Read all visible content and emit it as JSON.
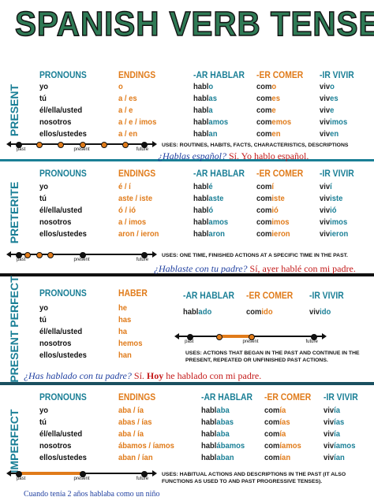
{
  "title": "SPANISH VERB TENSES",
  "sections": [
    {
      "label": "PRESENT",
      "columns": [
        {
          "header": "PRONOUNS",
          "rows": [
            [
              "yo"
            ],
            [
              "tú"
            ],
            [
              "él/ella/usted"
            ],
            [
              "nosotros"
            ],
            [
              "ellos/ustedes"
            ]
          ]
        },
        {
          "header": "ENDINGS",
          "rows": [
            [
              "o"
            ],
            [
              "a / es"
            ],
            [
              "a / e"
            ],
            [
              "a / e / imos"
            ],
            [
              "a / en"
            ]
          ]
        },
        {
          "header": "-AR HABLAR",
          "rows": [
            [
              "habl",
              "o"
            ],
            [
              "habl",
              "as"
            ],
            [
              "habl",
              "a"
            ],
            [
              "habl",
              "amos"
            ],
            [
              "habl",
              "an"
            ]
          ]
        },
        {
          "header": "-ER COMER",
          "rows": [
            [
              "com",
              "o"
            ],
            [
              "com",
              "es"
            ],
            [
              "com",
              "e"
            ],
            [
              "com",
              "emos"
            ],
            [
              "com",
              "en"
            ]
          ]
        },
        {
          "header": "-IR VIVIR",
          "rows": [
            [
              "viv",
              "o"
            ],
            [
              "viv",
              "es"
            ],
            [
              "viv",
              "e"
            ],
            [
              "viv",
              "imos"
            ],
            [
              "viv",
              "en"
            ]
          ]
        }
      ],
      "timeline": [
        "past",
        "present",
        "future"
      ],
      "uses": "USES: ROUTINES, HABITS, FACTS, CHARACTERISTICS, DESCRIPTIONS",
      "example": {
        "question": "¿Hablas español?",
        "answer": [
          "Sí. Yo hablo español."
        ]
      }
    },
    {
      "label": "PRETERITE",
      "columns": [
        {
          "header": "PRONOUNS",
          "rows": [
            [
              "yo"
            ],
            [
              "tú"
            ],
            [
              "él/ella/usted"
            ],
            [
              "nosotros"
            ],
            [
              "ellos/ustedes"
            ]
          ]
        },
        {
          "header": "ENDINGS",
          "rows": [
            [
              "é / í"
            ],
            [
              "aste / iste"
            ],
            [
              "ó / ió"
            ],
            [
              "a / imos"
            ],
            [
              "aron / ieron"
            ]
          ]
        },
        {
          "header": "-AR HABLAR",
          "rows": [
            [
              "habl",
              "é"
            ],
            [
              "habl",
              "aste"
            ],
            [
              "habl",
              "ó"
            ],
            [
              "habl",
              "amos"
            ],
            [
              "habl",
              "aron"
            ]
          ]
        },
        {
          "header": "-ER COMER",
          "rows": [
            [
              "com",
              "í"
            ],
            [
              "com",
              "iste"
            ],
            [
              "com",
              "ió"
            ],
            [
              "com",
              "imos"
            ],
            [
              "com",
              "ieron"
            ]
          ]
        },
        {
          "header": "-IR VIVIR",
          "rows": [
            [
              "viv",
              "í"
            ],
            [
              "viv",
              "iste"
            ],
            [
              "viv",
              "ió"
            ],
            [
              "viv",
              "imos"
            ],
            [
              "viv",
              "ieron"
            ]
          ]
        }
      ],
      "timeline": [
        "past",
        "present",
        "future"
      ],
      "uses": "USES: ONE TIME, FINISHED ACTIONS AT A SPECIFIC TIME IN THE PAST.",
      "example": {
        "question": "¿Hablaste con tu padre?",
        "answer": [
          "Sí, ayer hablé con mi padre."
        ]
      }
    },
    {
      "label": "PRESENT PERFECT",
      "columns": [
        {
          "header": "PRONOUNS",
          "rows": [
            [
              "yo"
            ],
            [
              "tú"
            ],
            [
              "él/ella/usted"
            ],
            [
              "nosotros"
            ],
            [
              "ellos/ustedes"
            ]
          ]
        },
        {
          "header": "HABER",
          "rows": [
            [
              "he"
            ],
            [
              "has"
            ],
            [
              "ha"
            ],
            [
              "hemos"
            ],
            [
              "han"
            ]
          ]
        },
        {
          "header": "-AR HABLAR",
          "rows": [
            [
              "habl",
              "ado"
            ]
          ]
        },
        {
          "header": "-ER COMER",
          "rows": [
            [
              "com",
              "ido"
            ]
          ]
        },
        {
          "header": "-IR VIVIR",
          "rows": [
            [
              "viv",
              "ido"
            ]
          ]
        }
      ],
      "timeline": [
        "past",
        "present",
        "future"
      ],
      "uses": "USES: ACTIONS THAT BEGAN IN THE PAST AND CONTINUE IN THE PRESENT, REPEATED OR UNFINISHED PAST ACTIONS.",
      "example": {
        "question": "¿Has hablado con tu padre?",
        "answer": [
          "Sí.",
          "Hoy",
          "he hablado con mi padre."
        ]
      }
    },
    {
      "label": "IMPERFECT",
      "columns": [
        {
          "header": "PRONOUNS",
          "rows": [
            [
              "yo"
            ],
            [
              "tú"
            ],
            [
              "él/ella/usted"
            ],
            [
              "nosotros"
            ],
            [
              "ellos/ustedes"
            ]
          ]
        },
        {
          "header": "ENDINGS",
          "rows": [
            [
              "aba / ía"
            ],
            [
              "abas / ías"
            ],
            [
              "aba / ía"
            ],
            [
              "ábamos / íamos"
            ],
            [
              "aban / ían"
            ]
          ]
        },
        {
          "header": "-AR HABLAR",
          "rows": [
            [
              "habl",
              "aba"
            ],
            [
              "habl",
              "abas"
            ],
            [
              "habl",
              "aba"
            ],
            [
              "habl",
              "ábamos"
            ],
            [
              "habl",
              "aban"
            ]
          ]
        },
        {
          "header": "-ER COMER",
          "rows": [
            [
              "com",
              "ía"
            ],
            [
              "com",
              "ías"
            ],
            [
              "com",
              "ía"
            ],
            [
              "com",
              "íamos"
            ],
            [
              "com",
              "ían"
            ]
          ]
        },
        {
          "header": "-IR VIVIR",
          "rows": [
            [
              "viv",
              "ía"
            ],
            [
              "viv",
              "ías"
            ],
            [
              "viv",
              "ía"
            ],
            [
              "viv",
              "íamos"
            ],
            [
              "viv",
              "ían"
            ]
          ]
        }
      ],
      "timeline": [
        "past",
        "present",
        "future"
      ],
      "uses": "USES: HABITUAL ACTIONS AND DESCRIPTIONS IN THE PAST (IT ALSO FUNCTIONS AS USED TO AND PAST PROGRESSIVE TENSES).",
      "example": {
        "statement": "Cuando tenía 2 años hablaba como un niño"
      }
    }
  ]
}
